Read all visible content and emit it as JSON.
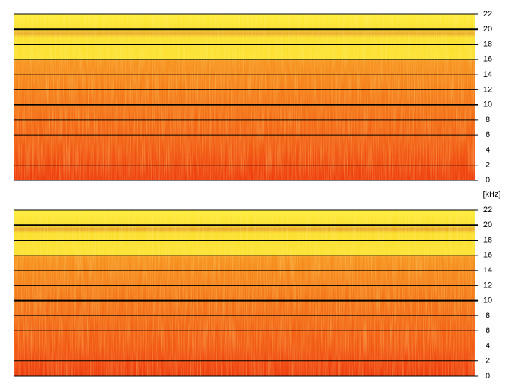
{
  "chart_data": [
    {
      "type": "spectrogram",
      "ylim": [
        0,
        22
      ],
      "yticks": [
        0,
        2,
        4,
        6,
        8,
        10,
        12,
        14,
        16,
        18,
        20,
        22
      ],
      "grid": true
    },
    {
      "type": "spectrogram",
      "ylabel": "[kHz]",
      "ylim": [
        0,
        22
      ],
      "yticks": [
        0,
        2,
        4,
        6,
        8,
        10,
        12,
        14,
        16,
        18,
        20,
        22
      ],
      "grid": true
    }
  ]
}
